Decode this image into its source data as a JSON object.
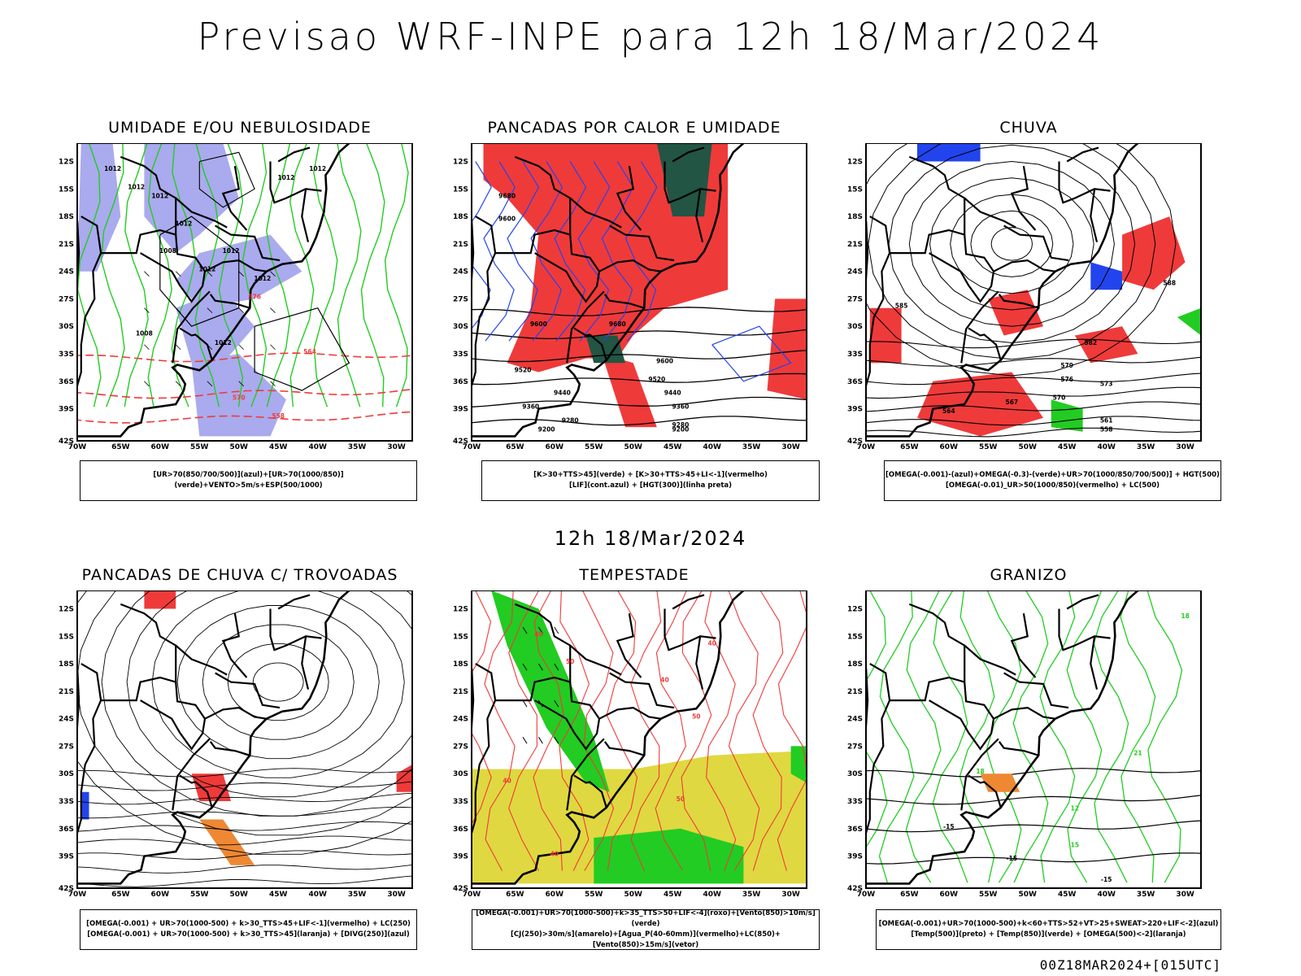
{
  "title": "Previsao WRF-INPE  para 12h 18/Mar/2024",
  "subtitle": "12h 18/Mar/2024",
  "footer": "00Z18MAR2024+[015UTC]",
  "axes": {
    "lat_labels": [
      "12S",
      "15S",
      "18S",
      "21S",
      "24S",
      "27S",
      "30S",
      "33S",
      "36S",
      "39S",
      "42S"
    ],
    "lon_labels": [
      "70W",
      "65W",
      "60W",
      "55W",
      "50W",
      "45W",
      "40W",
      "35W",
      "30W"
    ]
  },
  "panels": [
    {
      "id": "umidade",
      "title": "UMIDADE E/OU NEBULOSIDADE",
      "legend": [
        "[UR>70(850/700/500)](azul)+[UR>70(1000/850)](verde)+VENTO>5m/s+ESP(500/1000)"
      ],
      "labels": [
        "1012",
        "1012",
        "1012",
        "1012",
        "1008",
        "1012",
        "1012",
        "1012",
        "1012",
        "1012",
        "1008",
        "1012",
        "564",
        "558",
        "570",
        "576"
      ]
    },
    {
      "id": "pancadas-calor",
      "title": "PANCADAS POR CALOR E UMIDADE",
      "legend": [
        "[K>30+TTS>45](verde) + [K>30+TTS>45+LI<-1](vermelho)",
        "[LIF](cont.azul) + [HGT(300)](linha preta)"
      ],
      "labels": [
        "9680",
        "9600",
        "9680",
        "9600",
        "9520",
        "9600",
        "9520",
        "9440",
        "9440",
        "9360",
        "9360",
        "9280",
        "9280",
        "9200",
        "9200"
      ]
    },
    {
      "id": "chuva",
      "title": "CHUVA",
      "legend": [
        "[OMEGA(-0.001)-(azul)+OMEGA(-0.3)-(verde)+UR>70(1000/850/700/500)] + HGT(500)",
        "[OMEGA(-0.01)_UR>50(1000/850)(vermelho) + LC(500)"
      ],
      "labels": [
        "588",
        "585",
        "582",
        "579",
        "576",
        "573",
        "570",
        "567",
        "564",
        "561",
        "558"
      ]
    },
    {
      "id": "pancadas-trovoadas",
      "title": "PANCADAS DE CHUVA C/ TROVOADAS",
      "legend": [
        "[OMEGA(-0.001) + UR>70(1000-500) + k>30_TTS>45+LIF<-1](vermelho) + LC(250)",
        "[OMEGA(-0.001) + UR>70(1000-500) + k>30_TTS>45](laranja) + [DIVG(250)](azul)"
      ],
      "labels": []
    },
    {
      "id": "tempestade",
      "title": "TEMPESTADE",
      "legend": [
        "[OMEGA(-0.001)+UR>70(1000-500)+k>35_TTS>50+LIF<-4](roxo)+[Vento(850)>10m/s](verde)",
        "[CJ(250)>30m/s](amarelo)+[Agua_P(40-60mm)](vermelho)+LC(850)+[Vento(850)>15m/s](vetor)"
      ],
      "labels": [
        "40",
        "50",
        "40",
        "50",
        "40",
        "50",
        "40",
        "40"
      ]
    },
    {
      "id": "granizo",
      "title": "GRANIZO",
      "legend": [
        "[OMEGA(-0.001)+UR>70(1000-500)+k<60+TTS>52+VT>25+SWEAT>220+LIF<-2](azul)",
        "[Temp(500)](preto) + [Temp(850)](verde) + [OMEGA(500)<-2](laranja)"
      ],
      "labels": [
        "-15",
        "-15",
        "18",
        "18",
        "21",
        "15",
        "12",
        "-15"
      ]
    }
  ],
  "colors": {
    "frame": "#000000",
    "red": "#ef3a3a",
    "green": "#22cc22",
    "blue": "#2244ee",
    "lavender": "#aaaaee",
    "orange": "#ee8833",
    "yellow": "#e0d840",
    "darkgreen": "#225544"
  }
}
